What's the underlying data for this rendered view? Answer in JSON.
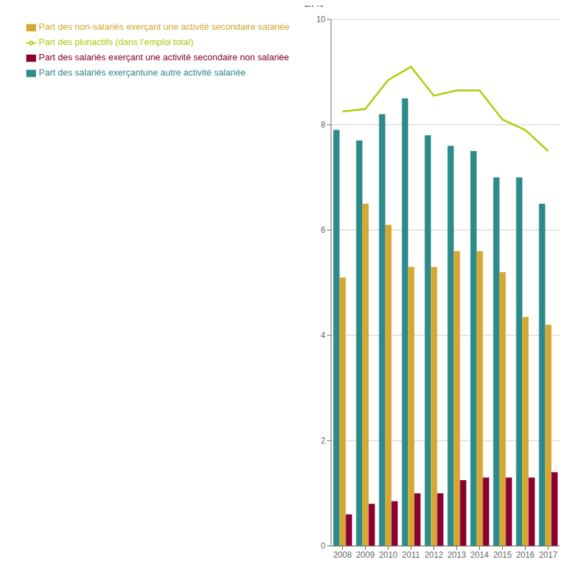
{
  "chart_data": {
    "type": "bar",
    "categories": [
      "2008",
      "2009",
      "2010",
      "2011",
      "2012",
      "2013",
      "2014",
      "2015",
      "2016",
      "2017"
    ],
    "series": [
      {
        "name": "Part des salariés exerçantune autre activité salariée",
        "color": "#2e8b8b",
        "values": [
          7.9,
          7.7,
          8.2,
          8.5,
          7.8,
          7.6,
          7.5,
          7.0,
          7.0,
          6.5
        ]
      },
      {
        "name": "Part des non-salariés exerçant une activité secondaire salariée",
        "color": "#d4a832",
        "values": [
          5.1,
          6.5,
          6.1,
          5.3,
          5.3,
          5.6,
          5.6,
          5.2,
          4.35,
          4.2
        ]
      },
      {
        "name": "Part des salariés exerçant une activité secondaire non salariée",
        "color": "#8b0032",
        "values": [
          0.6,
          0.8,
          0.85,
          1.0,
          1.0,
          1.25,
          1.3,
          1.3,
          1.3,
          1.4
        ]
      },
      {
        "name": "Part des pluriactifs (dans l’emploi total)",
        "color": "#aacc00",
        "type": "line",
        "values": [
          8.25,
          8.3,
          8.85,
          9.1,
          8.55,
          8.65,
          8.65,
          8.1,
          7.9,
          7.5
        ]
      }
    ],
    "ylabel": "en %",
    "ylim": [
      0,
      10
    ],
    "yticks": [
      0,
      2,
      4,
      6,
      8,
      10
    ],
    "grid": true,
    "legend": "upper left"
  }
}
